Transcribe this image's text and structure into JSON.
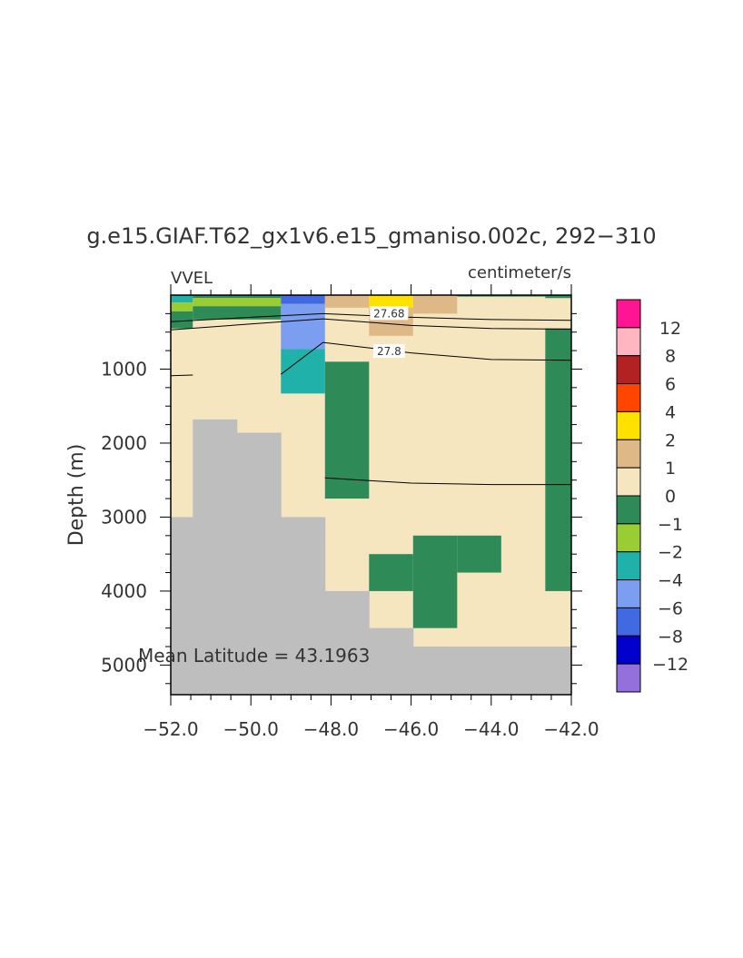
{
  "chart_data": {
    "type": "heatmap",
    "title": "g.e15.GIAF.T62_gx1v6.e15_gmaniso.002c, 292−310",
    "left_label": "VVEL",
    "right_label": "centimeter/s",
    "ylabel": "Depth (m)",
    "xlabel": "",
    "annotation": "Mean Latitude = 43.1963",
    "xlim": [
      -52,
      -42
    ],
    "ylim": [
      5400,
      0
    ],
    "x_ticks": [
      -52,
      -50,
      -48,
      -46,
      -44,
      -42
    ],
    "x_tick_labels": [
      "−52.0",
      "−50.0",
      "−48.0",
      "−46.0",
      "−44.0",
      "−42.0"
    ],
    "y_ticks": [
      1000,
      2000,
      3000,
      4000,
      5000
    ],
    "y_tick_labels": [
      "1000",
      "2000",
      "3000",
      "4000",
      "5000"
    ],
    "background_value": "0 to 1",
    "background_color": "#f5e6c0",
    "land_color": "#bebebe",
    "colorbar": {
      "colors": [
        "#ff1493",
        "#ffb6c1",
        "#b22222",
        "#ff4500",
        "#ffe100",
        "#deb887",
        "#f5e6c0",
        "#2e8b57",
        "#9acd32",
        "#20b2aa",
        "#7b9ef0",
        "#4169e1",
        "#0000cd",
        "#9370db"
      ],
      "labels": [
        "12",
        "8",
        "6",
        "4",
        "2",
        "1",
        "0",
        "−1",
        "−2",
        "−4",
        "−6",
        "−8",
        "−12"
      ]
    },
    "land": [
      {
        "x": [
          -52.0,
          -51.45
        ],
        "depth": [
          3000,
          5400
        ]
      },
      {
        "x": [
          -51.45,
          -50.35
        ],
        "depth": [
          1680,
          5400
        ]
      },
      {
        "x": [
          -50.35,
          -49.25
        ],
        "depth": [
          1860,
          5400
        ]
      },
      {
        "x": [
          -49.25,
          -48.15
        ],
        "depth": [
          3000,
          5400
        ]
      },
      {
        "x": [
          -48.15,
          -47.05
        ],
        "depth": [
          4000,
          5400
        ]
      },
      {
        "x": [
          -47.05,
          -45.95
        ],
        "depth": [
          4500,
          5400
        ]
      },
      {
        "x": [
          -45.95,
          -42.0
        ],
        "depth": [
          4750,
          5400
        ]
      }
    ],
    "cells": [
      {
        "x": [
          -52.0,
          -51.45
        ],
        "depth": [
          0,
          100
        ],
        "color": "#20b2aa"
      },
      {
        "x": [
          -52.0,
          -51.45
        ],
        "depth": [
          100,
          220
        ],
        "color": "#9acd32"
      },
      {
        "x": [
          -52.0,
          -51.45
        ],
        "depth": [
          220,
          450
        ],
        "color": "#2e8b57"
      },
      {
        "x": [
          -51.45,
          -49.25
        ],
        "depth": [
          0,
          40
        ],
        "color": "#2e8b57"
      },
      {
        "x": [
          -51.45,
          -49.25
        ],
        "depth": [
          40,
          150
        ],
        "color": "#9acd32"
      },
      {
        "x": [
          -51.45,
          -49.25
        ],
        "depth": [
          150,
          330
        ],
        "color": "#2e8b57"
      },
      {
        "x": [
          -49.25,
          -48.15
        ],
        "depth": [
          0,
          120
        ],
        "color": "#4169e1"
      },
      {
        "x": [
          -49.25,
          -48.15
        ],
        "depth": [
          120,
          730
        ],
        "color": "#7b9ef0"
      },
      {
        "x": [
          -49.25,
          -48.15
        ],
        "depth": [
          730,
          1330
        ],
        "color": "#20b2aa"
      },
      {
        "x": [
          -48.15,
          -47.05
        ],
        "depth": [
          0,
          170
        ],
        "color": "#deb887"
      },
      {
        "x": [
          -47.05,
          -45.95
        ],
        "depth": [
          0,
          170
        ],
        "color": "#ffe100"
      },
      {
        "x": [
          -47.05,
          -45.95
        ],
        "depth": [
          170,
          550
        ],
        "color": "#deb887"
      },
      {
        "x": [
          -45.95,
          -44.85
        ],
        "depth": [
          0,
          250
        ],
        "color": "#deb887"
      },
      {
        "x": [
          -44.85,
          -42.65
        ],
        "depth": [
          0,
          20
        ],
        "color": "#2e8b57"
      },
      {
        "x": [
          -42.65,
          -42.0
        ],
        "depth": [
          0,
          40
        ],
        "color": "#2e8b57"
      },
      {
        "x": [
          -48.15,
          -47.05
        ],
        "depth": [
          900,
          2750
        ],
        "color": "#2e8b57"
      },
      {
        "x": [
          -47.05,
          -45.95
        ],
        "depth": [
          3500,
          4000
        ],
        "color": "#2e8b57"
      },
      {
        "x": [
          -45.95,
          -44.85
        ],
        "depth": [
          3250,
          4500
        ],
        "color": "#2e8b57"
      },
      {
        "x": [
          -44.85,
          -43.75
        ],
        "depth": [
          3250,
          3750
        ],
        "color": "#2e8b57"
      },
      {
        "x": [
          -42.65,
          -42.0
        ],
        "depth": [
          450,
          4000
        ],
        "color": "#2e8b57"
      }
    ],
    "contours": [
      {
        "label": "27.68",
        "label_at": [
          -46.55,
          250
        ],
        "points": [
          [
            -52.0,
            360
          ],
          [
            -50.0,
            300
          ],
          [
            -48.2,
            250
          ],
          [
            -46.0,
            300
          ],
          [
            -44.0,
            330
          ],
          [
            -42.0,
            340
          ]
        ]
      },
      {
        "label": "",
        "label_at": null,
        "points": [
          [
            -52.0,
            470
          ],
          [
            -50.0,
            390
          ],
          [
            -48.2,
            320
          ],
          [
            -46.0,
            410
          ],
          [
            -44.0,
            450
          ],
          [
            -42.0,
            460
          ]
        ]
      },
      {
        "label": "27.8",
        "label_at": [
          -46.55,
          760
        ],
        "points": [
          [
            -49.25,
            1070
          ],
          [
            -48.2,
            640
          ],
          [
            -46.0,
            780
          ],
          [
            -44.0,
            870
          ],
          [
            -42.0,
            880
          ]
        ]
      },
      {
        "label": "",
        "label_at": null,
        "points": [
          [
            -52.0,
            1090
          ],
          [
            -51.45,
            1080
          ]
        ]
      },
      {
        "label": "",
        "label_at": null,
        "points": [
          [
            -48.15,
            2470
          ],
          [
            -46.0,
            2540
          ],
          [
            -44.0,
            2560
          ],
          [
            -42.0,
            2560
          ]
        ]
      }
    ]
  }
}
